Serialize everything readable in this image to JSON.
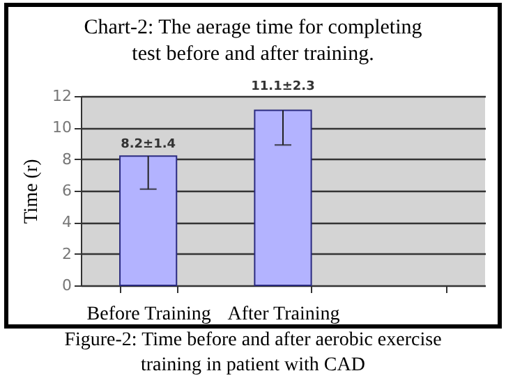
{
  "chart_data": {
    "type": "bar",
    "title": "Chart-2: The aerage time for completing test before and after training.",
    "ylabel": "Time (r)",
    "categories": [
      "Before Training",
      "After Training",
      null
    ],
    "values": [
      8.2,
      11.1,
      null
    ],
    "color": "#b3b3ff",
    "errors": [
      [
        6.1,
        8.2
      ],
      [
        8.9,
        11.1
      ],
      null
    ],
    "value_labels": [
      "8.2±1.4",
      "11.1±2.3",
      null
    ],
    "ylim": [
      0,
      12
    ],
    "yticks": [
      0,
      2,
      4,
      6,
      8,
      10,
      12
    ],
    "grid": "y",
    "annotations": [
      "Figure-2: Time before and after aerobic exercise training in patient with CAD"
    ]
  }
}
